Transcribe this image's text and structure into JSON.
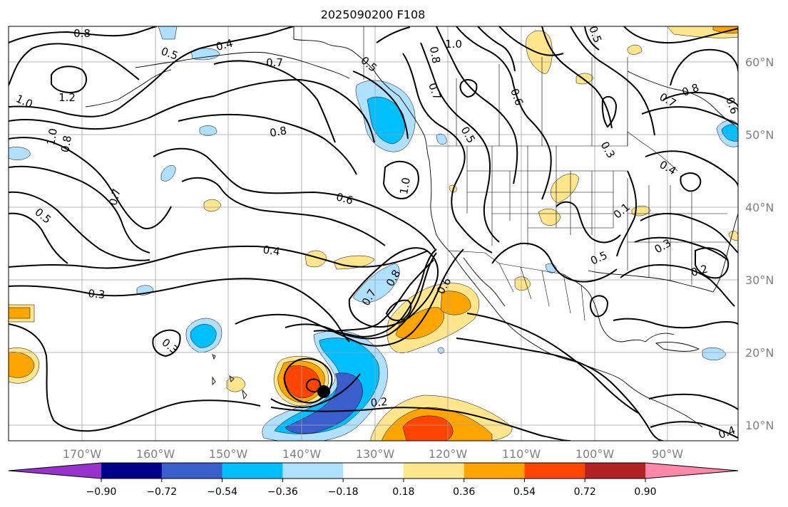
{
  "title": "2025090200 F108",
  "lon_labels": [
    "170°W",
    "160°W",
    "150°W",
    "140°W",
    "130°W",
    "120°W",
    "110°W",
    "100°W",
    "90°W"
  ],
  "lat_labels": [
    "60°N",
    "50°N",
    "40°N",
    "30°N",
    "20°N",
    "10°N"
  ],
  "colorbar": {
    "tick_labels": [
      "−0.90",
      "−0.72",
      "−0.54",
      "−0.36",
      "−0.18",
      "0.18",
      "0.36",
      "0.54",
      "0.72",
      "0.90"
    ],
    "colors": [
      "#9932cc",
      "#00008b",
      "#3a5fcd",
      "#00bfff",
      "#b0e0ff",
      "#ffffff",
      "#ffe68c",
      "#ffa500",
      "#ff4500",
      "#b22222",
      "#ff88aa"
    ]
  },
  "contour_labels": [
    {
      "text": "0.8"
    },
    {
      "text": "0.5"
    },
    {
      "text": "0.4"
    },
    {
      "text": "0.7"
    },
    {
      "text": "1.0"
    },
    {
      "text": "1.2"
    },
    {
      "text": "0.8"
    },
    {
      "text": "1.0"
    },
    {
      "text": "0.7"
    },
    {
      "text": "0.5"
    },
    {
      "text": "0.8"
    },
    {
      "text": "0.6"
    },
    {
      "text": "0.4"
    },
    {
      "text": "0.3"
    },
    {
      "text": "0.5"
    },
    {
      "text": "1.0"
    },
    {
      "text": "0.8"
    },
    {
      "text": "0.7"
    },
    {
      "text": "0.6"
    },
    {
      "text": "0.5"
    },
    {
      "text": "0.3"
    },
    {
      "text": "0.4"
    },
    {
      "text": "0.7"
    },
    {
      "text": "0.8"
    },
    {
      "text": "1.0"
    },
    {
      "text": "0.6"
    },
    {
      "text": "0.5"
    },
    {
      "text": "0.3"
    },
    {
      "text": "0.2"
    },
    {
      "text": "0.4"
    },
    {
      "text": "0.7"
    },
    {
      "text": "0.8"
    },
    {
      "text": "0.6"
    },
    {
      "text": "0.2"
    },
    {
      "text": "0.3"
    },
    {
      "text": "0.5"
    },
    {
      "text": "0.1"
    }
  ]
}
